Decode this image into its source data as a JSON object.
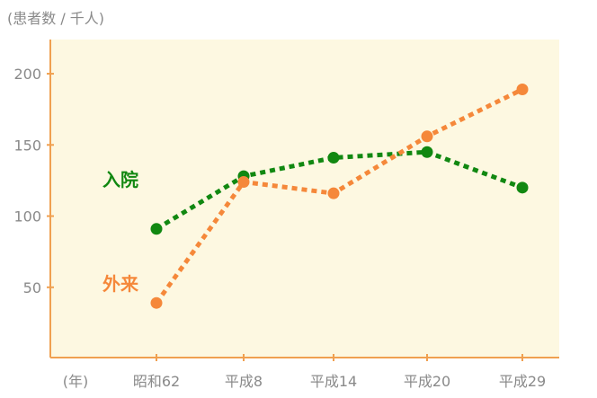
{
  "chart_data": {
    "type": "line",
    "unit_label": "(患者数 / 千人)",
    "x_axis_unit": "(年)",
    "categories": [
      "昭和62",
      "平成8",
      "平成14",
      "平成20",
      "平成29"
    ],
    "ylim": [
      0,
      225
    ],
    "yticks": [
      50,
      100,
      150,
      200
    ],
    "grid": false,
    "plot_background": "#fdf8e1",
    "axis_color": "#f0a050",
    "series": [
      {
        "name": "入院",
        "color": "#118811",
        "values": [
          91,
          128,
          141,
          145,
          120
        ]
      },
      {
        "name": "外来",
        "color": "#f5883a",
        "values": [
          39,
          124,
          116,
          156,
          189
        ]
      }
    ]
  }
}
